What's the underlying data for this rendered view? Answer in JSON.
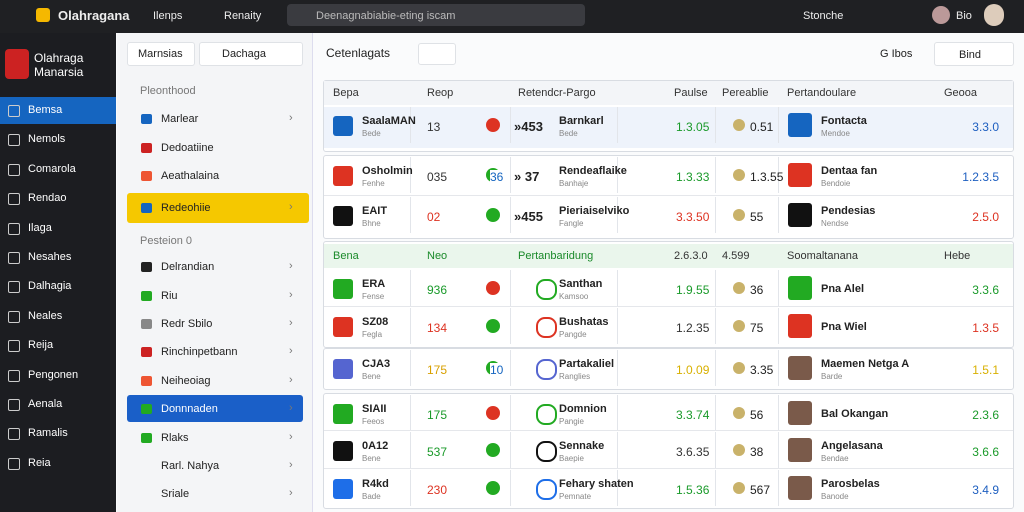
{
  "topbar": {
    "brand": "Olahragana",
    "nav": [
      "Ilenps",
      "Renaity"
    ],
    "search": "Deenagnabiabie-eting iscam",
    "user": "Stonche",
    "account": "Bio"
  },
  "sidebar": {
    "logo": "Olahraga Manarsia",
    "items": [
      "Bemsa",
      "Nemols",
      "Comarola",
      "Rendao",
      "Ilaga",
      "Nesahes",
      "Dalhagia",
      "Neales",
      "Reija",
      "Pengonen",
      "Aenala",
      "Ramalis",
      "Reia"
    ]
  },
  "filters": {
    "button": "Marnsias",
    "dropdown": "Dachaga",
    "items": [
      "Pleonthood",
      "Marlear",
      "Dedoatiine",
      "Aeathalaina",
      "Redeohiie",
      "Pesteion 0",
      "Delrandian",
      "Riu",
      "Redr Sbilo",
      "Rinchinpetbann",
      "Neiheoiag",
      "Donnnaden",
      "Rlaks",
      "Rarl. Nahya",
      "Sriale"
    ]
  },
  "main": {
    "title": "Cetenlagats",
    "sort": "G Ibos",
    "bind": "Bind",
    "header1": [
      "Bepa",
      "Reop",
      "Retendcr-Pargo",
      "Paulse",
      "Pereablie",
      "Pertandoulare",
      "Geooa"
    ],
    "header2": [
      "Bena",
      "Neo",
      "Pertanbaridung",
      "2.6.3.0",
      "4.599",
      "Soomaltanana",
      "Hebe"
    ],
    "rows": [
      {
        "code": "SaalaMAN",
        "sub": "Bede",
        "num": "13",
        "mid": "»453",
        "team": "Barnkarl",
        "team_sub": "Bede",
        "score": "1.3.05",
        "alt": "0.51",
        "player": "Fontacta",
        "player_sub": "Mendoe",
        "rating": "3.3.0"
      },
      {
        "code": "Osholmin",
        "sub": "Fenhe",
        "num": "035",
        "mark": "36",
        "mid": "» 37",
        "team": "Rendeaflaike",
        "team_sub": "Banhaje",
        "score": "1.3.33",
        "alt": "1.3.55",
        "player": "Dentaa fan",
        "player_sub": "Bendoie",
        "rating": "1.2.3.5"
      },
      {
        "code": "EAIT",
        "sub": "Bhne",
        "num": "02",
        "mid": "»455",
        "team": "Pieriaiselviko",
        "team_sub": "Fangle",
        "score": "3.3.50",
        "alt": "55",
        "player": "Pendesias",
        "player_sub": "Nendse",
        "rating": "2.5.0"
      },
      {
        "code": "ERA",
        "sub": "Fense",
        "num": "936",
        "team": "Santhan",
        "team_sub": "Kamsoo",
        "score": "1.9.55",
        "alt": "36",
        "player": "Pna Alel",
        "rating": "3.3.6"
      },
      {
        "code": "SZ08",
        "sub": "Fegla",
        "num": "134",
        "team": "Bushatas",
        "team_sub": "Pangde",
        "score": "1.2.35",
        "alt": "75",
        "player": "Pna Wiel",
        "rating": "1.3.5"
      },
      {
        "code": "CJA3",
        "sub": "Bene",
        "num": "175",
        "mark": "10",
        "team": "Partakaliel",
        "team_sub": "Ranglies",
        "score": "1.0.09",
        "alt": "3.35",
        "player": "Maemen Netga A",
        "player_sub": "Barde",
        "rating": "1.5.1"
      },
      {
        "code": "SIAII",
        "sub": "Feeos",
        "num": "175",
        "team": "Domnion",
        "team_sub": "Pangie",
        "score": "3.3.74",
        "alt": "56",
        "player": "Bal Okangan",
        "rating": "2.3.6"
      },
      {
        "code": "0A12",
        "sub": "Bene",
        "num": "537",
        "team": "Sennake",
        "team_sub": "Baepie",
        "score": "3.6.35",
        "alt": "38",
        "player": "Angelasana",
        "player_sub": "Bendae",
        "rating": "3.6.6"
      },
      {
        "code": "R4kd",
        "sub": "Bade",
        "num": "230",
        "team": "Fehary shaten",
        "team_sub": "Pemnate",
        "score": "1.5.36",
        "alt": "567",
        "player": "Parosbelas",
        "player_sub": "Banode",
        "rating": "3.4.9"
      }
    ]
  }
}
